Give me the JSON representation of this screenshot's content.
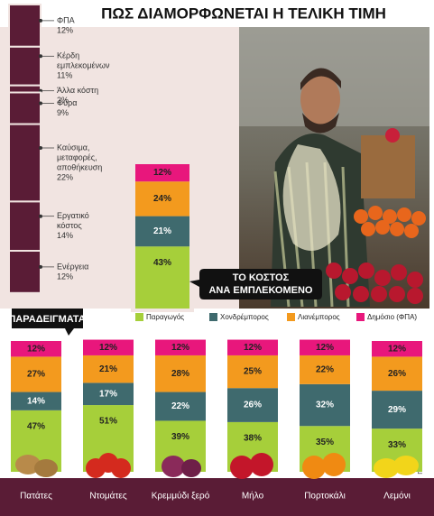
{
  "title": "ΠΩΣ ΔΙΑΜΟΡΦΩΝΕΤΑΙ Η ΤΕΛΙΚΗ ΤΙΜΗ",
  "source": "ΠΗΓΗ: ΕΛΚΑ",
  "chart_data": [
    {
      "type": "breakdown",
      "color": "#5a1c36",
      "categories": [
        [
          "ΦΠΑ"
        ],
        [
          "Κέρδη",
          "εμπλεκομένων"
        ],
        [
          "Άλλα κόστη"
        ],
        [
          "Φύρα"
        ],
        [
          "Καύσιμα,",
          "μεταφορές,",
          "αποθήκευση"
        ],
        [
          "Εργατικό",
          "κόστος"
        ],
        [
          "Ενέργεια"
        ]
      ],
      "values": [
        12,
        11,
        2,
        9,
        22,
        14,
        12
      ],
      "value_labels": [
        "12%",
        "11%",
        "2%",
        "9%",
        "22%",
        "14%",
        "12%"
      ]
    },
    {
      "type": "stacked-bar",
      "annotations": {
        "callout": [
          "ΤΟ ΚΟΣΤΟΣ",
          "ΑΝΑ ΕΜΠΛΕΚΟΜΕΝΟ"
        ],
        "examples": "ΠΑΡΑΔΕΙΓΜΑΤΑ"
      },
      "categories": [
        null,
        "Πατάτες",
        "Ντομάτες",
        "Κρεμμύδι ξερό",
        "Μήλο",
        "Πορτοκάλι",
        "Λεμόνι"
      ],
      "series": [
        {
          "name": "Παραγωγός",
          "color": "#a6cf3a",
          "values": [
            43,
            47,
            51,
            39,
            38,
            35,
            33
          ],
          "value_labels": [
            "43%",
            "47%",
            "51%",
            "39%",
            "38%",
            "35%",
            "33%"
          ]
        },
        {
          "name": "Χονδρέμπορος",
          "color": "#3f6a6e",
          "values": [
            21,
            14,
            17,
            22,
            26,
            32,
            29
          ],
          "value_labels": [
            "21%",
            "14%",
            "17%",
            "22%",
            "26%",
            "32%",
            "29%"
          ]
        },
        {
          "name": "Λιανέμπορος",
          "color": "#f39a1e",
          "values": [
            24,
            27,
            21,
            28,
            25,
            22,
            26
          ],
          "value_labels": [
            "24%",
            "27%",
            "21%",
            "28%",
            "25%",
            "22%",
            "26%"
          ]
        },
        {
          "name": "Δημόσιο (ΦΠΑ)",
          "color": "#e8177c",
          "values": [
            12,
            12,
            12,
            12,
            12,
            12,
            12
          ],
          "value_labels": [
            "12%",
            "12%",
            "12%",
            "12%",
            "12%",
            "12%",
            "12%"
          ]
        }
      ]
    }
  ]
}
